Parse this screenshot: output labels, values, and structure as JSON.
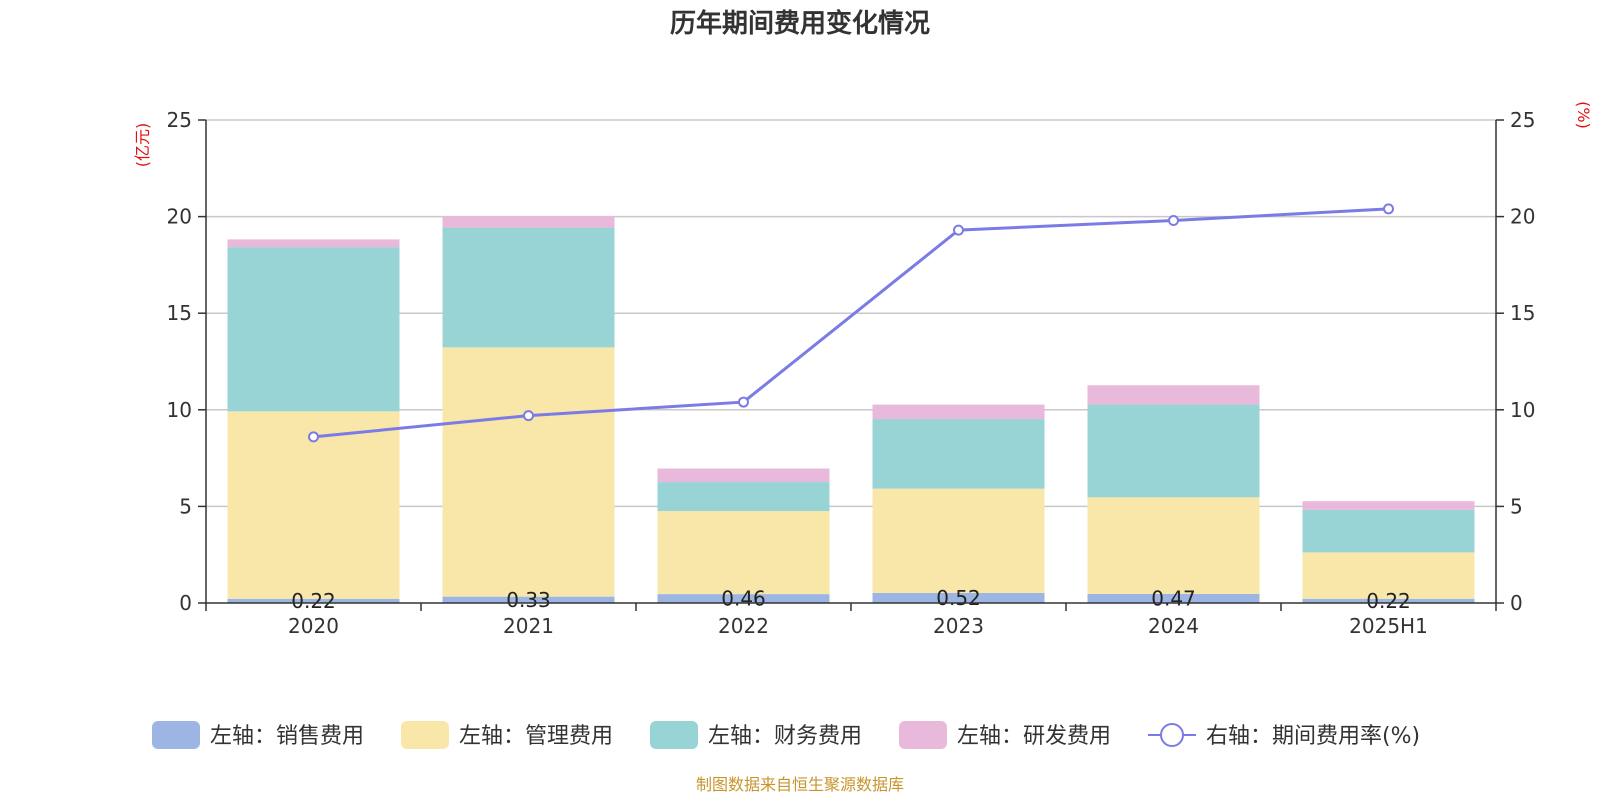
{
  "chart_data": {
    "type": "bar",
    "title": "历年期间费用变化情况",
    "categories": [
      "2020",
      "2021",
      "2022",
      "2023",
      "2024",
      "2025H1"
    ],
    "left_axis": {
      "unit": "(亿元)",
      "ylim": [
        0,
        25
      ],
      "ticks": [
        "0",
        "5",
        "10",
        "15",
        "20",
        "25"
      ]
    },
    "right_axis": {
      "unit": "(%)",
      "ylim": [
        0,
        25
      ],
      "ticks": [
        "0",
        "5",
        "10",
        "15",
        "20",
        "25"
      ]
    },
    "grid": true,
    "legend_position": "bottom",
    "series": [
      {
        "name": "左轴：销售费用",
        "type": "bar",
        "stack": true,
        "color": "#9db5e2",
        "values": [
          0.22,
          0.33,
          0.46,
          0.52,
          0.47,
          0.22
        ],
        "labels": [
          "0.22",
          "0.33",
          "0.46",
          "0.52",
          "0.47",
          "0.22"
        ]
      },
      {
        "name": "左轴：管理费用",
        "type": "bar",
        "stack": true,
        "color": "#f8e7a8",
        "values": [
          9.7,
          12.9,
          4.3,
          5.4,
          5.0,
          2.4
        ]
      },
      {
        "name": "左轴：财务费用",
        "type": "bar",
        "stack": true,
        "color": "#98d4d6",
        "values": [
          8.5,
          6.2,
          1.5,
          3.6,
          4.8,
          2.2
        ]
      },
      {
        "name": "左轴：研发费用",
        "type": "bar",
        "stack": true,
        "color": "#e8b9da",
        "values": [
          0.4,
          0.6,
          0.7,
          0.75,
          1.0,
          0.45
        ]
      },
      {
        "name": "右轴：期间费用率(%)",
        "type": "line",
        "axis": "right",
        "color": "#7b7be8",
        "values": [
          8.6,
          9.7,
          10.4,
          19.3,
          19.8,
          20.4
        ]
      }
    ],
    "source_note": "制图数据来自恒生聚源数据库"
  }
}
